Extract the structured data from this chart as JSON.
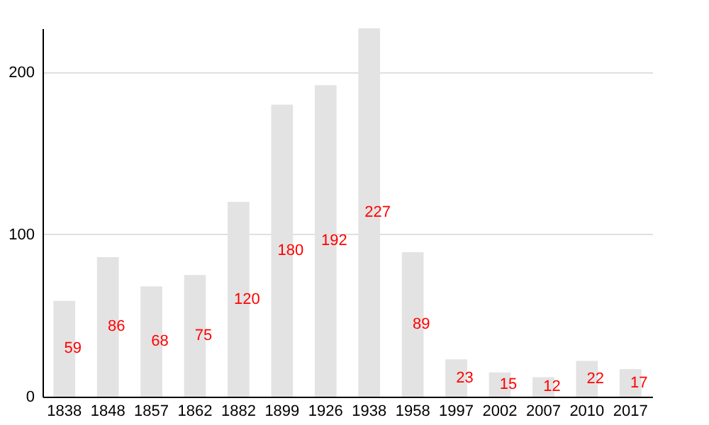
{
  "chart_data": {
    "type": "bar",
    "categories": [
      "1838",
      "1848",
      "1857",
      "1862",
      "1882",
      "1899",
      "1926",
      "1938",
      "1958",
      "1997",
      "2002",
      "2007",
      "2010",
      "2017"
    ],
    "values": [
      59,
      86,
      68,
      75,
      120,
      180,
      192,
      227,
      89,
      23,
      15,
      12,
      22,
      17
    ],
    "color": "#e3e3e3",
    "ylim": [
      0,
      227
    ],
    "yticks": [
      0,
      100,
      200
    ],
    "grid": "y",
    "data_labels": true
  }
}
